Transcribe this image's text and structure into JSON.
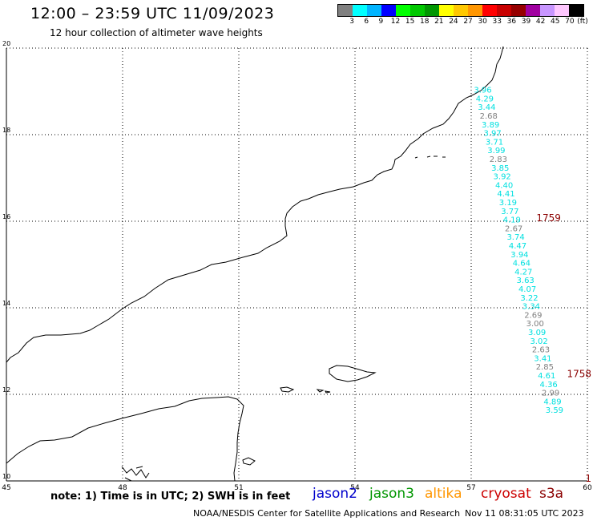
{
  "header": {
    "title": "12:00 – 23:59 UTC 11/09/2023",
    "subtitle": "12 hour collection of altimeter wave heights"
  },
  "colorbar": {
    "colors": [
      "#808080",
      "#00ffff",
      "#00b4ff",
      "#0000ff",
      "#00ff00",
      "#00c800",
      "#009600",
      "#ffff00",
      "#ffc800",
      "#ff9600",
      "#ff0000",
      "#c80000",
      "#960000",
      "#a000a0",
      "#c896ff",
      "#ffc8ff",
      "#000000"
    ],
    "labels": [
      "3",
      "6",
      "9",
      "12",
      "15",
      "18",
      "21",
      "24",
      "27",
      "30",
      "33",
      "36",
      "39",
      "42",
      "45",
      "70",
      "(ft)"
    ]
  },
  "map": {
    "lon_range": [
      45,
      60
    ],
    "lat_range": [
      10,
      20
    ],
    "lon_ticks": [
      "45",
      "48",
      "51",
      "54",
      "57",
      "60"
    ],
    "lat_ticks": [
      "10",
      "12",
      "14",
      "16",
      "18",
      "20"
    ],
    "grid": true,
    "track_points": [
      {
        "lon": 57.3,
        "lat": 18.97,
        "label": "3.96",
        "sat": "jason3"
      },
      {
        "lon": 57.35,
        "lat": 18.77,
        "label": "4.29",
        "sat": "jason3"
      },
      {
        "lon": 57.4,
        "lat": 18.57,
        "label": "3.44",
        "sat": "jason3"
      },
      {
        "lon": 57.45,
        "lat": 18.37,
        "label": "2.68",
        "sat": "low"
      },
      {
        "lon": 57.5,
        "lat": 18.17,
        "label": "3.89",
        "sat": "jason3"
      },
      {
        "lon": 57.55,
        "lat": 17.97,
        "label": "3.97",
        "sat": "jason3"
      },
      {
        "lon": 57.6,
        "lat": 17.77,
        "label": "3.71",
        "sat": "jason3"
      },
      {
        "lon": 57.65,
        "lat": 17.57,
        "label": "3.99",
        "sat": "jason3"
      },
      {
        "lon": 57.7,
        "lat": 17.37,
        "label": "2.83",
        "sat": "low"
      },
      {
        "lon": 57.75,
        "lat": 17.17,
        "label": "3.85",
        "sat": "jason3"
      },
      {
        "lon": 57.8,
        "lat": 16.97,
        "label": "3.92",
        "sat": "jason3"
      },
      {
        "lon": 57.85,
        "lat": 16.77,
        "label": "4.40",
        "sat": "jason3"
      },
      {
        "lon": 57.9,
        "lat": 16.57,
        "label": "4.41",
        "sat": "jason3"
      },
      {
        "lon": 57.95,
        "lat": 16.37,
        "label": "3.19",
        "sat": "jason3"
      },
      {
        "lon": 58.0,
        "lat": 16.17,
        "label": "3.77",
        "sat": "jason3"
      },
      {
        "lon": 58.05,
        "lat": 15.97,
        "label": "4.19",
        "sat": "jason3"
      },
      {
        "lon": 58.1,
        "lat": 15.77,
        "label": "2.67",
        "sat": "low"
      },
      {
        "lon": 58.15,
        "lat": 15.57,
        "label": "3.74",
        "sat": "jason3"
      },
      {
        "lon": 58.2,
        "lat": 15.37,
        "label": "4.47",
        "sat": "jason3"
      },
      {
        "lon": 58.25,
        "lat": 15.17,
        "label": "3.94",
        "sat": "jason3"
      },
      {
        "lon": 58.3,
        "lat": 14.97,
        "label": "4.64",
        "sat": "jason3"
      },
      {
        "lon": 58.35,
        "lat": 14.77,
        "label": "4.27",
        "sat": "jason3"
      },
      {
        "lon": 58.4,
        "lat": 14.57,
        "label": "3.63",
        "sat": "jason3"
      },
      {
        "lon": 58.45,
        "lat": 14.37,
        "label": "4.07",
        "sat": "jason3"
      },
      {
        "lon": 58.5,
        "lat": 14.17,
        "label": "3.22",
        "sat": "jason3"
      },
      {
        "lon": 58.55,
        "lat": 13.97,
        "label": "3.34",
        "sat": "jason3"
      },
      {
        "lon": 58.6,
        "lat": 13.77,
        "label": "2.69",
        "sat": "low"
      },
      {
        "lon": 58.65,
        "lat": 13.57,
        "label": "3.00",
        "sat": "low"
      },
      {
        "lon": 58.7,
        "lat": 13.37,
        "label": "3.09",
        "sat": "jason3"
      },
      {
        "lon": 58.75,
        "lat": 13.17,
        "label": "3.02",
        "sat": "jason3"
      },
      {
        "lon": 58.8,
        "lat": 12.97,
        "label": "2.63",
        "sat": "low"
      },
      {
        "lon": 58.85,
        "lat": 12.77,
        "label": "3.41",
        "sat": "jason3"
      },
      {
        "lon": 58.9,
        "lat": 12.57,
        "label": "2.85",
        "sat": "low"
      },
      {
        "lon": 58.95,
        "lat": 12.37,
        "label": "4.61",
        "sat": "jason3"
      },
      {
        "lon": 59.0,
        "lat": 12.17,
        "label": "4.36",
        "sat": "jason3"
      },
      {
        "lon": 59.05,
        "lat": 11.97,
        "label": "2.99",
        "sat": "low"
      },
      {
        "lon": 59.1,
        "lat": 11.77,
        "label": "4.89",
        "sat": "jason3"
      },
      {
        "lon": 59.15,
        "lat": 11.57,
        "label": "3.59",
        "sat": "jason3"
      }
    ],
    "time_labels": [
      {
        "lon": 59.0,
        "lat": 16.0,
        "label": "1759"
      },
      {
        "lon": 60.4,
        "lat": 12.4,
        "label": "1758"
      },
      {
        "lon": 61.8,
        "lat": 8.8,
        "label": "1"
      }
    ],
    "track_colors": {
      "jason3": "#00e0e0",
      "low": "#7f7f7f",
      "time": "#8b0000"
    }
  },
  "footer": {
    "note": "note: 1) Time is in UTC; 2) SWH is in feet",
    "satellites": [
      {
        "label": "jason2",
        "color": "#0000cc"
      },
      {
        "label": "jason3",
        "color": "#009600"
      },
      {
        "label": "altika",
        "color": "#ff9600"
      },
      {
        "label": "cryosat",
        "color": "#cc0000"
      },
      {
        "label": "s3a",
        "color": "#8b0000"
      }
    ],
    "credit": "NOAA/NESDIS Center for Satellite Applications and Research",
    "timestamp": "Nov 11 08:31:05 UTC 2023"
  }
}
